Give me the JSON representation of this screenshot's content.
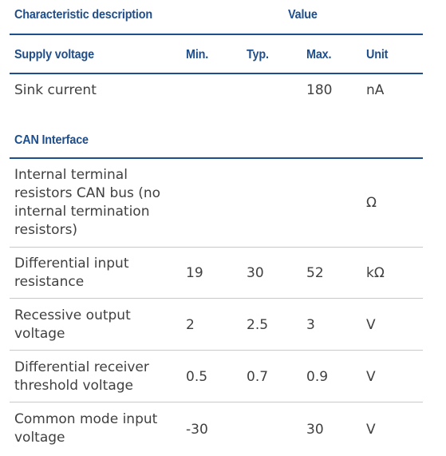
{
  "header": {
    "characteristic": "Characteristic description",
    "value": "Value"
  },
  "supply": {
    "section": "Supply voltage",
    "min": "Min.",
    "typ": "Typ.",
    "max": "Max.",
    "unit": "Unit",
    "rows": [
      {
        "desc": "Sink current",
        "min": "",
        "typ": "",
        "max": "180",
        "unit": "nA"
      }
    ]
  },
  "can": {
    "section": "CAN Interface",
    "rows": [
      {
        "desc": "Internal terminal resistors CAN bus (no internal termination resistors)",
        "min": "",
        "typ": "",
        "max": "",
        "unit": "Ω"
      },
      {
        "desc": "Differential input resistance",
        "min": "19",
        "typ": "30",
        "max": "52",
        "unit": "kΩ"
      },
      {
        "desc": "Recessive output voltage",
        "min": "2",
        "typ": "2.5",
        "max": "3",
        "unit": "V"
      },
      {
        "desc": "Differential receiver threshold voltage",
        "min": "0.5",
        "typ": "0.7",
        "max": "0.9",
        "unit": "V"
      },
      {
        "desc": "Common mode input voltage",
        "min": "-30",
        "typ": "",
        "max": "30",
        "unit": "V"
      }
    ]
  }
}
